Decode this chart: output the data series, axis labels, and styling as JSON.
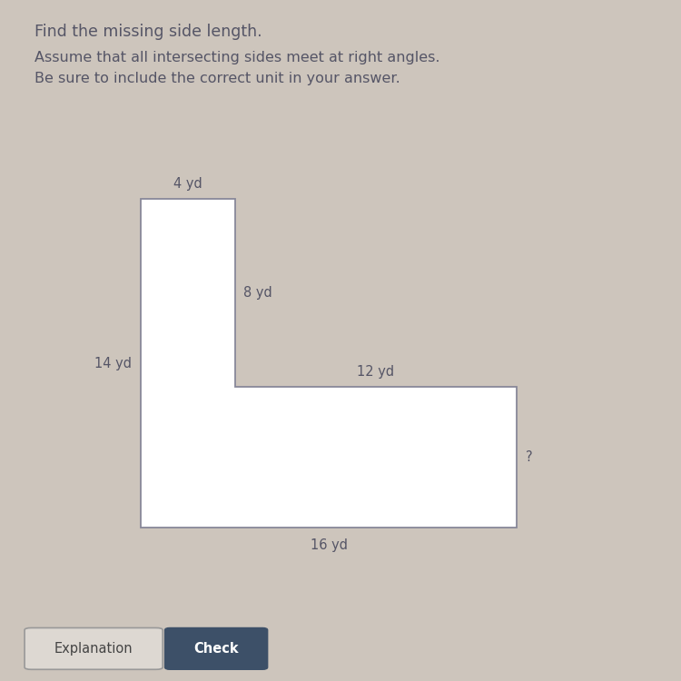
{
  "title_line1": "Find the missing side length.",
  "title_line2": "Assume that all intersecting sides meet at right angles.\nBe sure to include the correct unit in your answer.",
  "bg_color": "#cdc5bc",
  "shape_color": "#ffffff",
  "line_color": "#888899",
  "text_color": "#555566",
  "labels": {
    "top": "4 yd",
    "right_upper": "8 yd",
    "left": "14 yd",
    "middle_horiz": "12 yd",
    "bottom": "16 yd",
    "missing": "?"
  },
  "button1_text": "Explanation",
  "button2_text": "Check",
  "button1_color": "#ddd8d2",
  "button2_color": "#3d5068"
}
